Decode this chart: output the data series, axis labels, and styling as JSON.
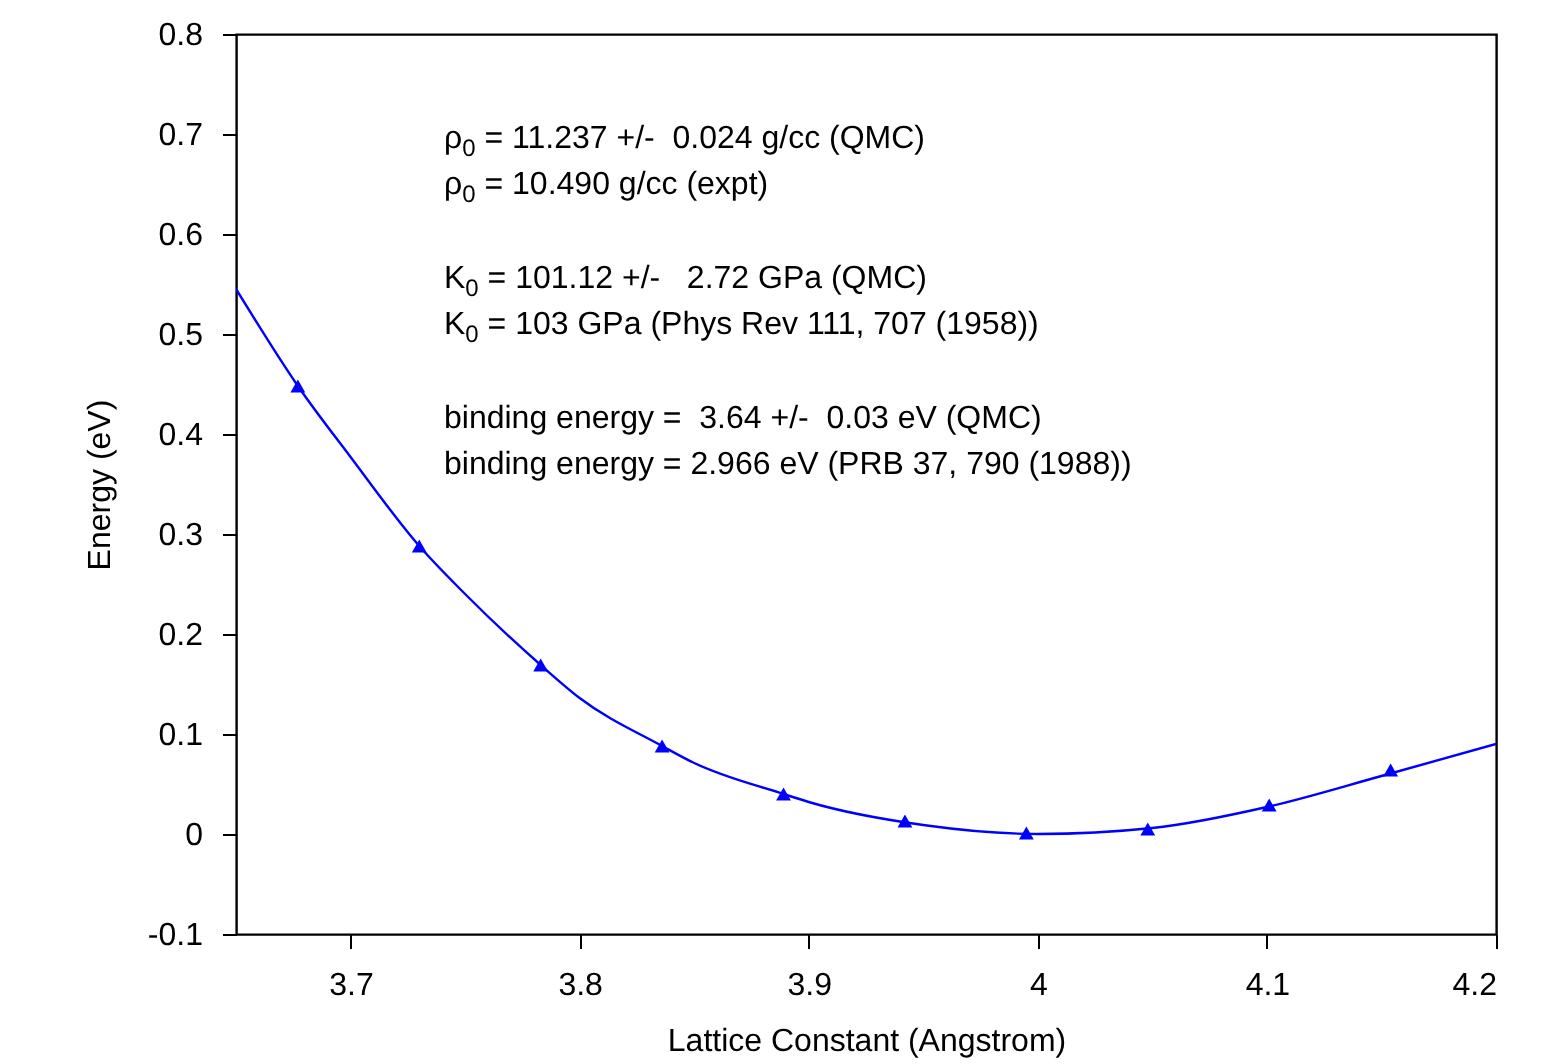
{
  "chart_data": {
    "type": "scatter",
    "xlabel": "Lattice Constant (Angstrom)",
    "ylabel": "Energy (eV)",
    "xlim": [
      3.65,
      4.2
    ],
    "xticks": [
      3.7,
      3.8,
      3.9,
      4,
      4.1,
      4.2
    ],
    "ylim": [
      -0.1,
      0.8
    ],
    "yticks": [
      -0.1,
      0,
      0.1,
      0.2,
      0.3,
      0.4,
      0.5,
      0.6,
      0.7,
      0.8
    ],
    "marker": "triangle",
    "grid": false,
    "series": [
      {
        "color": "#0000ff",
        "x": [
          3.677,
          3.73,
          3.783,
          3.836,
          3.889,
          3.942,
          3.995,
          4.048,
          4.101,
          4.154
        ],
        "values": [
          0.448,
          0.288,
          0.169,
          0.088,
          0.04,
          0.013,
          0.001,
          0.005,
          0.029,
          0.064
        ]
      },
      {
        "type": "line",
        "color": "#0000ff",
        "marker": "none",
        "x": [
          3.65,
          3.677,
          3.7,
          3.73,
          3.75,
          3.783,
          3.8,
          3.836,
          3.85,
          3.889,
          3.9,
          3.95,
          4.0,
          4.05,
          4.1,
          4.15,
          4.2
        ],
        "values": [
          0.545,
          0.448,
          0.377,
          0.288,
          0.24,
          0.169,
          0.136,
          0.088,
          0.071,
          0.04,
          0.032,
          0.009,
          0.0,
          0.006,
          0.027,
          0.058,
          0.09
        ]
      }
    ],
    "annotations": [
      "ρ$_{0}$ = 11.237 +/-  0.024 g/cc (QMC)",
      "ρ$_{0}$ = 10.490 g/cc (expt)",
      "K$_{0}$ = 101.12 +/-   2.72 GPa (QMC)",
      "K$_{0}$ = 103 GPa (Phys Rev 111, 707 (1958))",
      "binding energy =  3.64 +/-  0.03 eV (QMC)",
      "binding energy = 2.966 eV (PRB 37, 790 (1988))"
    ]
  }
}
